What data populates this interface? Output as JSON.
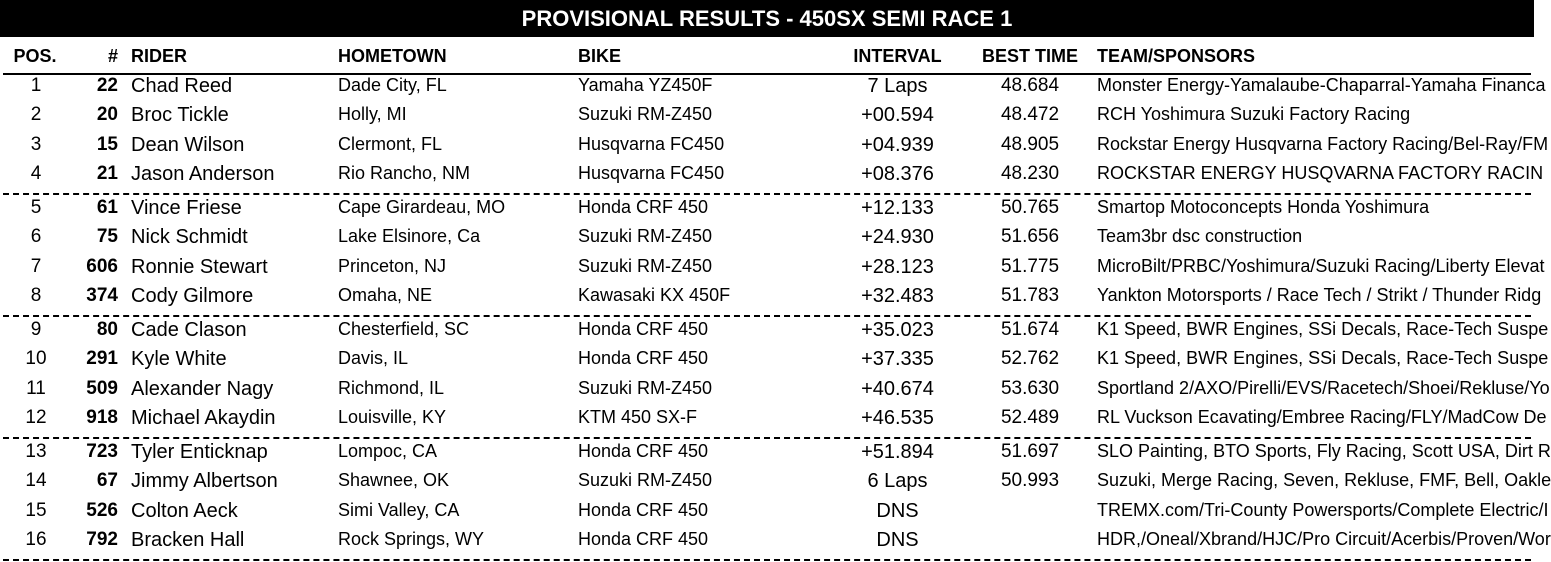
{
  "title": "PROVISIONAL RESULTS - 450SX SEMI RACE 1",
  "headers": {
    "pos": "POS.",
    "num": "#",
    "rider": "RIDER",
    "hometown": "HOMETOWN",
    "bike": "BIKE",
    "interval": "INTERVAL",
    "best_time": "BEST TIME",
    "team": "TEAM/SPONSORS"
  },
  "rows": [
    {
      "pos": "1",
      "num": "22",
      "rider": "Chad Reed",
      "hometown": "Dade City, FL",
      "bike": "Yamaha YZ450F",
      "interval": "7 Laps",
      "best": "48.684",
      "team": "Monster Energy-Yamalaube-Chaparral-Yamaha Financa"
    },
    {
      "pos": "2",
      "num": "20",
      "rider": "Broc Tickle",
      "hometown": "Holly, MI",
      "bike": "Suzuki RM-Z450",
      "interval": "+00.594",
      "best": "48.472",
      "team": "RCH Yoshimura Suzuki Factory Racing"
    },
    {
      "pos": "3",
      "num": "15",
      "rider": "Dean Wilson",
      "hometown": "Clermont, FL",
      "bike": "Husqvarna FC450",
      "interval": "+04.939",
      "best": "48.905",
      "team": "Rockstar Energy Husqvarna Factory Racing/Bel-Ray/FM"
    },
    {
      "pos": "4",
      "num": "21",
      "rider": "Jason Anderson",
      "hometown": "Rio Rancho, NM",
      "bike": "Husqvarna FC450",
      "interval": "+08.376",
      "best": "48.230",
      "team": "ROCKSTAR ENERGY HUSQVARNA FACTORY RACIN"
    },
    {
      "pos": "5",
      "num": "61",
      "rider": "Vince Friese",
      "hometown": "Cape Girardeau, MO",
      "bike": "Honda CRF 450",
      "interval": "+12.133",
      "best": "50.765",
      "team": "Smartop Motoconcepts Honda Yoshimura"
    },
    {
      "pos": "6",
      "num": "75",
      "rider": "Nick Schmidt",
      "hometown": "Lake Elsinore, Ca",
      "bike": "Suzuki RM-Z450",
      "interval": "+24.930",
      "best": "51.656",
      "team": "Team3br dsc construction"
    },
    {
      "pos": "7",
      "num": "606",
      "rider": "Ronnie Stewart",
      "hometown": "Princeton, NJ",
      "bike": "Suzuki RM-Z450",
      "interval": "+28.123",
      "best": "51.775",
      "team": "MicroBilt/PRBC/Yoshimura/Suzuki Racing/Liberty Elevat"
    },
    {
      "pos": "8",
      "num": "374",
      "rider": "Cody Gilmore",
      "hometown": "Omaha, NE",
      "bike": "Kawasaki KX 450F",
      "interval": "+32.483",
      "best": "51.783",
      "team": "Yankton Motorsports / Race Tech / Strikt / Thunder Ridg"
    },
    {
      "pos": "9",
      "num": "80",
      "rider": "Cade Clason",
      "hometown": "Chesterfield, SC",
      "bike": "Honda CRF 450",
      "interval": "+35.023",
      "best": "51.674",
      "team": "K1 Speed, BWR Engines, SSi Decals, Race-Tech Suspe"
    },
    {
      "pos": "10",
      "num": "291",
      "rider": "Kyle White",
      "hometown": "Davis, IL",
      "bike": "Honda CRF 450",
      "interval": "+37.335",
      "best": "52.762",
      "team": "K1 Speed, BWR Engines, SSi Decals, Race-Tech Suspe"
    },
    {
      "pos": "11",
      "num": "509",
      "rider": "Alexander Nagy",
      "hometown": "Richmond, IL",
      "bike": "Suzuki RM-Z450",
      "interval": "+40.674",
      "best": "53.630",
      "team": "Sportland 2/AXO/Pirelli/EVS/Racetech/Shoei/Rekluse/Yo"
    },
    {
      "pos": "12",
      "num": "918",
      "rider": "Michael Akaydin",
      "hometown": "Louisville, KY",
      "bike": "KTM 450 SX-F",
      "interval": "+46.535",
      "best": "52.489",
      "team": "RL Vuckson Ecavating/Embree Racing/FLY/MadCow De"
    },
    {
      "pos": "13",
      "num": "723",
      "rider": "Tyler Enticknap",
      "hometown": "Lompoc, CA",
      "bike": "Honda CRF 450",
      "interval": "+51.894",
      "best": "51.697",
      "team": "SLO Painting, BTO Sports, Fly Racing, Scott USA, Dirt R"
    },
    {
      "pos": "14",
      "num": "67",
      "rider": "Jimmy Albertson",
      "hometown": "Shawnee, OK",
      "bike": "Suzuki RM-Z450",
      "interval": "6 Laps",
      "best": "50.993",
      "team": "Suzuki, Merge Racing, Seven, Rekluse, FMF, Bell, Oakle"
    },
    {
      "pos": "15",
      "num": "526",
      "rider": "Colton Aeck",
      "hometown": "Simi Valley, CA",
      "bike": "Honda CRF 450",
      "interval": "DNS",
      "best": "",
      "team": "TREMX.com/Tri-County Powersports/Complete Electric/I"
    },
    {
      "pos": "16",
      "num": "792",
      "rider": "Bracken Hall",
      "hometown": "Rock Springs, WY",
      "bike": "Honda CRF 450",
      "interval": "DNS",
      "best": "",
      "team": "HDR,/Oneal/Xbrand/HJC/Pro Circuit/Acerbis/Proven/Wor"
    }
  ]
}
